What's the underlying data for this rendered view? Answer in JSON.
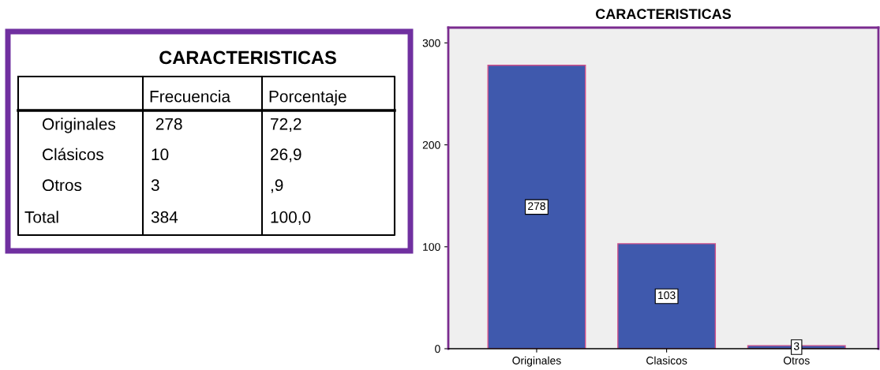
{
  "chart_data": [
    {
      "type": "other",
      "title": "CARACTERISTICAS",
      "categories": [
        null,
        "Frecuencia",
        "Porcentaje"
      ],
      "y_categories": [
        "Originales",
        "Clásicos",
        "Otros",
        "Total"
      ],
      "cell_labels": [
        [
          " 278",
          "72,2"
        ],
        [
          "10",
          "26,9"
        ],
        [
          "3",
          ",9"
        ],
        [
          "384",
          "100,0"
        ]
      ],
      "color": "#7030a0"
    },
    {
      "type": "bar",
      "title": "CARACTERISTICAS",
      "categories": [
        "Originales",
        "Clasicos",
        "Otros"
      ],
      "values": [
        278,
        103,
        3
      ],
      "color": "#3f59ad",
      "ylim": [
        0,
        315
      ],
      "yticks": [
        0,
        100,
        200,
        300
      ],
      "data_labels": true,
      "grid": false
    }
  ]
}
